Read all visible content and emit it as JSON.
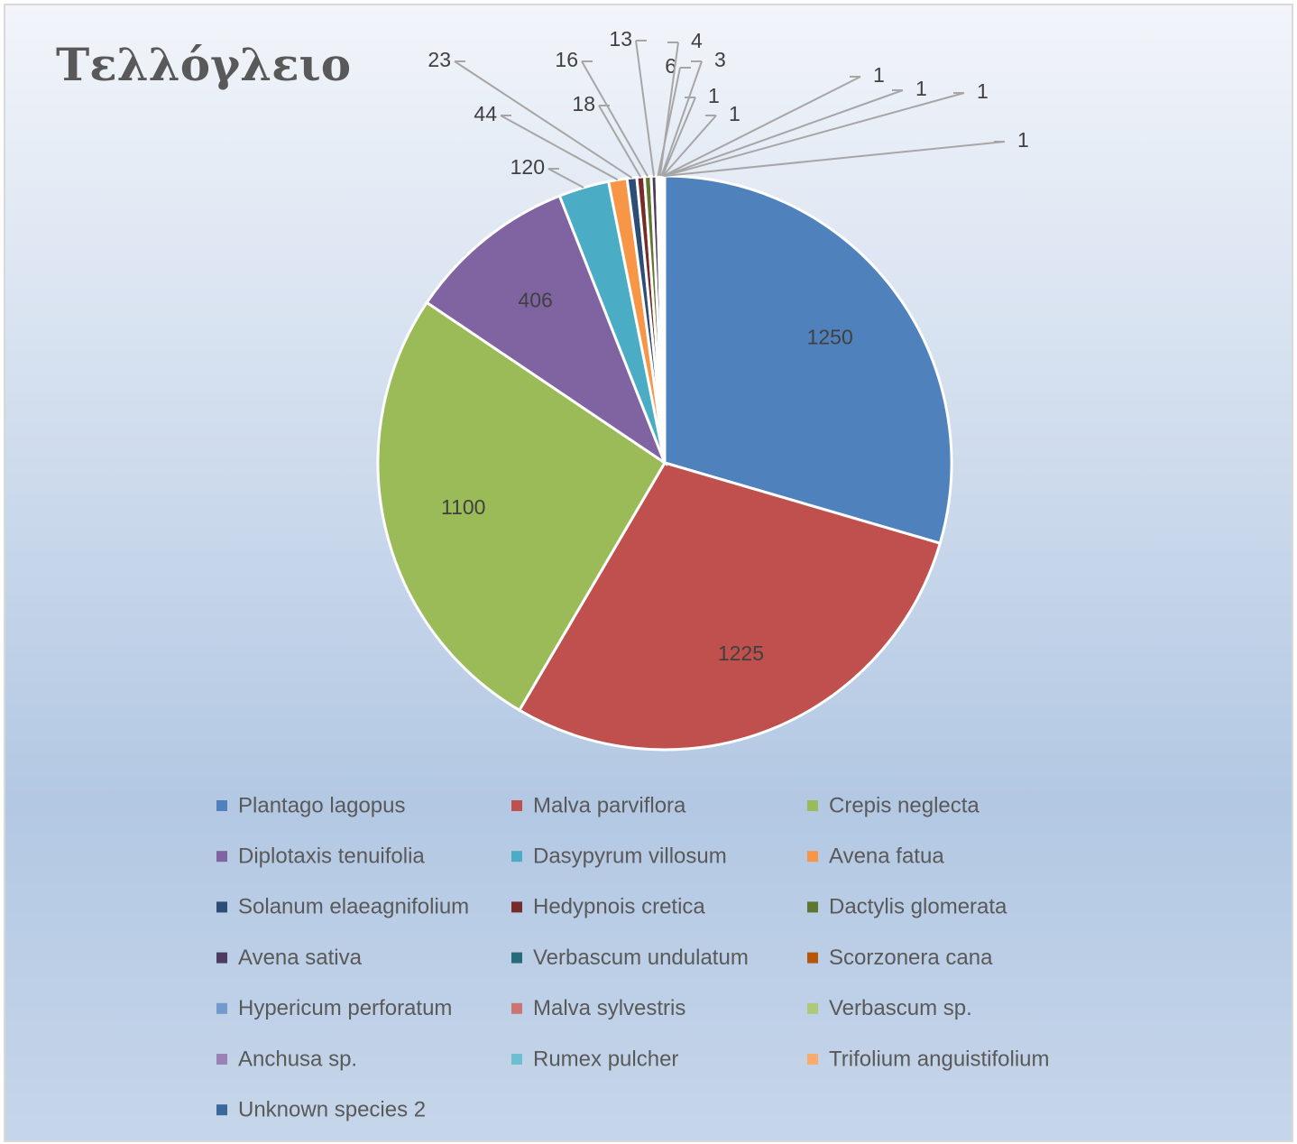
{
  "chart_data": {
    "type": "pie",
    "title": "Τελλόγλειο",
    "categories": [
      "Plantago lagopus",
      "Malva parviflora",
      "Crepis neglecta",
      "Diplotaxis tenuifolia",
      "Dasypyrum villosum",
      "Avena fatua",
      "Solanum elaeagnifolium",
      "Hedypnois cretica",
      "Dactylis glomerata",
      "Avena sativa",
      "Verbascum undulatum",
      "Scorzonera cana",
      "Hypericum perforatum",
      "Malva sylvestris",
      "Verbascum sp.",
      "Anchusa sp.",
      "Rumex pulcher",
      "Trifolium anguistifolium",
      "Unknown species 2"
    ],
    "values": [
      1250,
      1225,
      1100,
      406,
      120,
      44,
      23,
      18,
      16,
      13,
      6,
      4,
      3,
      1,
      1,
      1,
      1,
      1,
      1
    ],
    "colors": [
      "#4f81bd",
      "#c0504d",
      "#9bbb59",
      "#8064a2",
      "#4bacc6",
      "#f79646",
      "#2c4d75",
      "#772c2a",
      "#5f7530",
      "#4d3b62",
      "#276a7c",
      "#b65708",
      "#729aca",
      "#cd7371",
      "#afc97a",
      "#9983b5",
      "#6fbdd1",
      "#f9ab6b",
      "#3a679c"
    ],
    "legend": "bottom"
  }
}
